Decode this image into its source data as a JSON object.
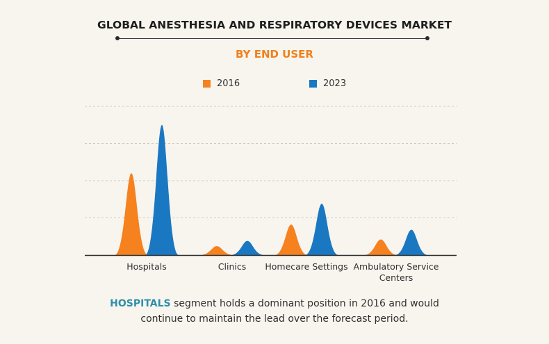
{
  "title": "GLOBAL ANESTHESIA AND RESPIRATORY DEVICES MARKET",
  "subtitle": "BY END USER",
  "colors": {
    "series_2016": "#f5821f",
    "series_2023": "#1a78c2",
    "accent": "#f0801a",
    "highlight": "#2f8fa8"
  },
  "chart_data": {
    "type": "area",
    "title": "GLOBAL ANESTHESIA AND RESPIRATORY DEVICES MARKET",
    "subtitle": "BY END USER",
    "categories": [
      "Hospitals",
      "Clinics",
      "Homecare Settings",
      "Ambulatory Service Centers"
    ],
    "category_lines": [
      [
        "Hospitals"
      ],
      [
        "Clinics"
      ],
      [
        "Homecare Settings"
      ],
      [
        "Ambulatory Service",
        "Centers"
      ]
    ],
    "series": [
      {
        "name": "2016",
        "values": [
          2.2,
          0.24,
          0.82,
          0.42
        ]
      },
      {
        "name": "2023",
        "values": [
          3.5,
          0.38,
          1.38,
          0.68
        ]
      }
    ],
    "ylim": [
      0,
      4
    ],
    "grid": true,
    "legend": "top-center",
    "ylabel": "",
    "xlabel": ""
  },
  "caption": {
    "highlight": "HOSPITALS",
    "line1": "segment holds a dominant position in 2016 and would",
    "line2": "continue to maintain the lead over the forecast period."
  }
}
